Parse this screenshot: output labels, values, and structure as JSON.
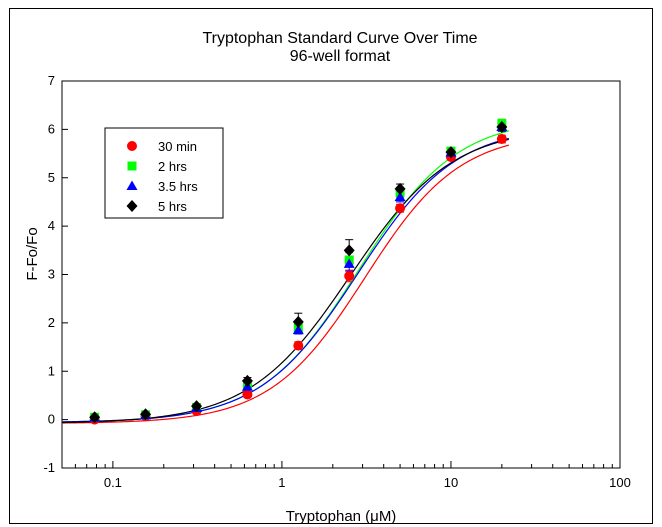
{
  "chart_data": {
    "type": "scatter",
    "title": "Tryptophan Standard Curve Over Time",
    "subtitle": "96-well format",
    "xlabel": "Tryptophan (μM)",
    "ylabel": "F-Fo/Fo",
    "xscale": "log",
    "xlim": [
      0.05,
      100
    ],
    "ylim": [
      -1,
      7
    ],
    "x_ticks": [
      0.1,
      1,
      10,
      100
    ],
    "x_tick_labels": [
      "0.1",
      "1",
      "10",
      "100"
    ],
    "y_ticks": [
      -1,
      0,
      1,
      2,
      3,
      4,
      5,
      6,
      7
    ],
    "y_tick_labels": [
      "-1",
      "0",
      "1",
      "2",
      "3",
      "4",
      "5",
      "6",
      "7"
    ],
    "grid": false,
    "legend_position": "top-left",
    "x": [
      0.078,
      0.156,
      0.3125,
      0.625,
      1.25,
      2.5,
      5,
      10,
      20
    ],
    "series": [
      {
        "name": "30 min",
        "color": "#ff0000",
        "marker": "circle",
        "values": [
          0.0,
          0.07,
          0.18,
          0.52,
          1.53,
          2.97,
          4.37,
          5.43,
          5.8
        ],
        "errors": [
          0.03,
          0.03,
          0.05,
          0.05,
          0.08,
          0.12,
          0.08,
          0.06,
          0.08
        ],
        "fit": {
          "bottom": -0.08,
          "top": 5.95,
          "ec50": 3.1,
          "hill": 1.55
        }
      },
      {
        "name": "2 hrs",
        "color": "#00ff00",
        "marker": "square",
        "values": [
          0.05,
          0.1,
          0.25,
          0.73,
          1.9,
          3.3,
          4.7,
          5.55,
          6.12
        ],
        "errors": [
          0.03,
          0.03,
          0.05,
          0.06,
          0.08,
          0.15,
          0.1,
          0.07,
          0.09
        ],
        "fit": {
          "bottom": -0.06,
          "top": 6.25,
          "ec50": 2.85,
          "hill": 1.5
        }
      },
      {
        "name": "3.5 hrs",
        "color": "#0000ff",
        "marker": "triangle",
        "values": [
          0.04,
          0.09,
          0.24,
          0.68,
          1.85,
          3.22,
          4.6,
          5.52,
          6.05
        ],
        "errors": [
          0.03,
          0.03,
          0.05,
          0.06,
          0.08,
          0.15,
          0.1,
          0.07,
          0.09
        ],
        "fit": {
          "bottom": -0.06,
          "top": 6.08,
          "ec50": 2.8,
          "hill": 1.5
        }
      },
      {
        "name": "5 hrs",
        "color": "#000000",
        "marker": "diamond",
        "values": [
          0.05,
          0.11,
          0.28,
          0.8,
          2.02,
          3.5,
          4.77,
          5.53,
          6.05
        ],
        "errors": [
          0.03,
          0.03,
          0.05,
          0.07,
          0.18,
          0.22,
          0.1,
          0.07,
          0.08
        ],
        "fit": {
          "bottom": -0.08,
          "top": 6.05,
          "ec50": 2.55,
          "hill": 1.45
        }
      }
    ]
  }
}
